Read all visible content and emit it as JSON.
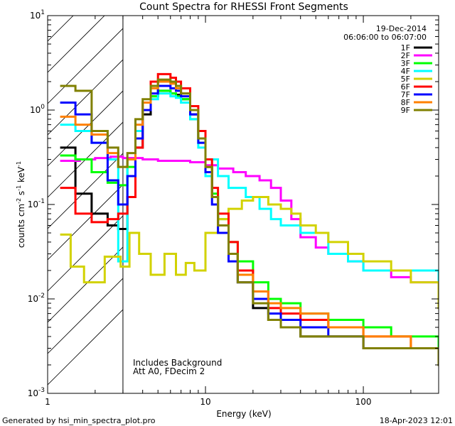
{
  "chart_data": {
    "type": "line",
    "title": "Count Spectra for RHESSI Front Segments",
    "xlabel": "Energy (keV)",
    "ylabel_parts": [
      "counts cm",
      "-2",
      " s",
      "-1",
      " keV",
      "-1"
    ],
    "x_scale": "log",
    "y_scale": "log",
    "xlim": [
      1,
      300
    ],
    "ylim": [
      0.001,
      10
    ],
    "x_ticks": [
      {
        "value": 1,
        "label": "1"
      },
      {
        "value": 10,
        "label": "10"
      },
      {
        "value": 100,
        "label": "100"
      }
    ],
    "y_ticks": [
      {
        "value": 10,
        "base": "10",
        "exp": "1"
      },
      {
        "value": 1,
        "base": "10",
        "exp": "0"
      },
      {
        "value": 0.1,
        "base": "10",
        "exp": "-1"
      },
      {
        "value": 0.01,
        "base": "10",
        "exp": "-2"
      },
      {
        "value": 0.001,
        "base": "10",
        "exp": "-3"
      }
    ],
    "date": "19-Dec-2014",
    "time_range": "06:06:00 to 06:07:00",
    "shaded_region_xlim": [
      1,
      3
    ],
    "annotations": [
      "Includes Background",
      "Att A0, FDecim 2"
    ],
    "series": [
      {
        "name": "1F",
        "color": "#000000",
        "points": [
          [
            1.2,
            0.4
          ],
          [
            1.5,
            0.13
          ],
          [
            1.9,
            0.08
          ],
          [
            2.4,
            0.06
          ],
          [
            2.8,
            0.055
          ],
          [
            3.2,
            0.12
          ],
          [
            3.6,
            0.4
          ],
          [
            4.0,
            0.9
          ],
          [
            4.5,
            1.4
          ],
          [
            5.0,
            1.6
          ],
          [
            5.5,
            1.6
          ],
          [
            6.0,
            1.5
          ],
          [
            6.5,
            1.45
          ],
          [
            7.0,
            1.3
          ],
          [
            8.0,
            0.9
          ],
          [
            9.0,
            0.5
          ],
          [
            10.0,
            0.25
          ],
          [
            11.0,
            0.12
          ],
          [
            12.0,
            0.06
          ],
          [
            14.0,
            0.03
          ],
          [
            16.0,
            0.015
          ],
          [
            20.0,
            0.008
          ],
          [
            25.0,
            0.006
          ],
          [
            30.0,
            0.005
          ],
          [
            40.0,
            0.004
          ],
          [
            60.0,
            0.004
          ],
          [
            100.0,
            0.003
          ],
          [
            150.0,
            0.003
          ],
          [
            200.0,
            0.003
          ],
          [
            300.0,
            0.003
          ]
        ]
      },
      {
        "name": "2F",
        "color": "#ff00ff",
        "points": [
          [
            1.2,
            0.29
          ],
          [
            1.6,
            0.3
          ],
          [
            2.0,
            0.31
          ],
          [
            2.5,
            0.32
          ],
          [
            3.0,
            0.31
          ],
          [
            4.0,
            0.3
          ],
          [
            5.0,
            0.29
          ],
          [
            6.0,
            0.29
          ],
          [
            8.0,
            0.28
          ],
          [
            10.0,
            0.26
          ],
          [
            12.0,
            0.24
          ],
          [
            15.0,
            0.22
          ],
          [
            18.0,
            0.2
          ],
          [
            22.0,
            0.18
          ],
          [
            26.0,
            0.15
          ],
          [
            30.0,
            0.11
          ],
          [
            35.0,
            0.07
          ],
          [
            40.0,
            0.045
          ],
          [
            50.0,
            0.035
          ],
          [
            60.0,
            0.03
          ],
          [
            80.0,
            0.025
          ],
          [
            100.0,
            0.02
          ],
          [
            150.0,
            0.017
          ],
          [
            200.0,
            0.015
          ],
          [
            300.0,
            0.012
          ]
        ]
      },
      {
        "name": "3F",
        "color": "#00ff00",
        "points": [
          [
            1.2,
            0.33
          ],
          [
            1.5,
            0.3
          ],
          [
            1.9,
            0.22
          ],
          [
            2.4,
            0.17
          ],
          [
            2.8,
            0.16
          ],
          [
            3.2,
            0.25
          ],
          [
            3.6,
            0.6
          ],
          [
            4.0,
            1.0
          ],
          [
            4.5,
            1.4
          ],
          [
            5.0,
            1.6
          ],
          [
            5.5,
            1.6
          ],
          [
            6.0,
            1.5
          ],
          [
            6.5,
            1.4
          ],
          [
            7.0,
            1.3
          ],
          [
            8.0,
            0.8
          ],
          [
            9.0,
            0.45
          ],
          [
            10.0,
            0.25
          ],
          [
            11.0,
            0.13
          ],
          [
            12.0,
            0.07
          ],
          [
            14.0,
            0.04
          ],
          [
            16.0,
            0.025
          ],
          [
            20.0,
            0.015
          ],
          [
            25.0,
            0.01
          ],
          [
            30.0,
            0.009
          ],
          [
            40.0,
            0.007
          ],
          [
            60.0,
            0.006
          ],
          [
            100.0,
            0.005
          ],
          [
            150.0,
            0.004
          ],
          [
            200.0,
            0.004
          ],
          [
            300.0,
            0.003
          ]
        ]
      },
      {
        "name": "4F",
        "color": "#00ffff",
        "points": [
          [
            1.2,
            0.7
          ],
          [
            1.5,
            0.6
          ],
          [
            1.9,
            0.45
          ],
          [
            2.4,
            0.3
          ],
          [
            2.8,
            0.025
          ],
          [
            3.2,
            0.3
          ],
          [
            3.6,
            0.6
          ],
          [
            4.0,
            1.0
          ],
          [
            4.5,
            1.3
          ],
          [
            5.0,
            1.5
          ],
          [
            5.5,
            1.5
          ],
          [
            6.0,
            1.4
          ],
          [
            6.5,
            1.35
          ],
          [
            7.0,
            1.2
          ],
          [
            8.0,
            0.8
          ],
          [
            9.0,
            0.4
          ],
          [
            10.0,
            0.2
          ],
          [
            11.0,
            0.3
          ],
          [
            12.0,
            0.2
          ],
          [
            14.0,
            0.15
          ],
          [
            18.0,
            0.12
          ],
          [
            22.0,
            0.09
          ],
          [
            26.0,
            0.07
          ],
          [
            30.0,
            0.06
          ],
          [
            40.0,
            0.05
          ],
          [
            50.0,
            0.05
          ],
          [
            60.0,
            0.03
          ],
          [
            80.0,
            0.025
          ],
          [
            100.0,
            0.02
          ],
          [
            150.0,
            0.02
          ],
          [
            200.0,
            0.02
          ],
          [
            300.0,
            0.015
          ]
        ]
      },
      {
        "name": "5F",
        "color": "#d2d200",
        "points": [
          [
            1.2,
            0.048
          ],
          [
            1.4,
            0.022
          ],
          [
            1.7,
            0.015
          ],
          [
            2.0,
            0.015
          ],
          [
            2.3,
            0.028
          ],
          [
            2.6,
            0.028
          ],
          [
            2.9,
            0.022
          ],
          [
            3.3,
            0.05
          ],
          [
            3.8,
            0.03
          ],
          [
            4.5,
            0.018
          ],
          [
            5.5,
            0.03
          ],
          [
            6.5,
            0.018
          ],
          [
            7.5,
            0.024
          ],
          [
            8.5,
            0.02
          ],
          [
            10.0,
            0.05
          ],
          [
            12.0,
            0.07
          ],
          [
            14.0,
            0.09
          ],
          [
            17.0,
            0.11
          ],
          [
            20.0,
            0.12
          ],
          [
            25.0,
            0.1
          ],
          [
            30.0,
            0.09
          ],
          [
            35.0,
            0.08
          ],
          [
            40.0,
            0.06
          ],
          [
            50.0,
            0.05
          ],
          [
            60.0,
            0.04
          ],
          [
            80.0,
            0.03
          ],
          [
            100.0,
            0.025
          ],
          [
            150.0,
            0.02
          ],
          [
            200.0,
            0.015
          ],
          [
            300.0,
            0.008
          ]
        ]
      },
      {
        "name": "6F",
        "color": "#ff0000",
        "points": [
          [
            1.2,
            0.15
          ],
          [
            1.5,
            0.08
          ],
          [
            1.9,
            0.065
          ],
          [
            2.4,
            0.07
          ],
          [
            2.8,
            0.08
          ],
          [
            3.2,
            0.12
          ],
          [
            3.6,
            0.4
          ],
          [
            4.0,
            1.2
          ],
          [
            4.5,
            2.0
          ],
          [
            5.0,
            2.4
          ],
          [
            5.5,
            2.4
          ],
          [
            6.0,
            2.2
          ],
          [
            6.5,
            2.0
          ],
          [
            7.0,
            1.7
          ],
          [
            8.0,
            1.1
          ],
          [
            9.0,
            0.6
          ],
          [
            10.0,
            0.3
          ],
          [
            11.0,
            0.15
          ],
          [
            12.0,
            0.08
          ],
          [
            14.0,
            0.04
          ],
          [
            16.0,
            0.02
          ],
          [
            20.0,
            0.012
          ],
          [
            25.0,
            0.008
          ],
          [
            30.0,
            0.007
          ],
          [
            40.0,
            0.006
          ],
          [
            60.0,
            0.005
          ],
          [
            100.0,
            0.004
          ],
          [
            150.0,
            0.004
          ],
          [
            200.0,
            0.003
          ],
          [
            300.0,
            0.003
          ]
        ]
      },
      {
        "name": "7F",
        "color": "#0000ff",
        "points": [
          [
            1.2,
            1.2
          ],
          [
            1.5,
            0.9
          ],
          [
            1.9,
            0.45
          ],
          [
            2.4,
            0.18
          ],
          [
            2.8,
            0.1
          ],
          [
            3.2,
            0.2
          ],
          [
            3.6,
            0.5
          ],
          [
            4.0,
            1.0
          ],
          [
            4.5,
            1.5
          ],
          [
            5.0,
            1.8
          ],
          [
            5.5,
            1.8
          ],
          [
            6.0,
            1.7
          ],
          [
            6.5,
            1.6
          ],
          [
            7.0,
            1.4
          ],
          [
            8.0,
            0.9
          ],
          [
            9.0,
            0.45
          ],
          [
            10.0,
            0.22
          ],
          [
            11.0,
            0.1
          ],
          [
            12.0,
            0.05
          ],
          [
            14.0,
            0.025
          ],
          [
            16.0,
            0.015
          ],
          [
            20.0,
            0.01
          ],
          [
            25.0,
            0.007
          ],
          [
            30.0,
            0.006
          ],
          [
            40.0,
            0.005
          ],
          [
            60.0,
            0.004
          ],
          [
            100.0,
            0.003
          ],
          [
            150.0,
            0.003
          ],
          [
            200.0,
            0.003
          ],
          [
            300.0,
            0.002
          ]
        ]
      },
      {
        "name": "8F",
        "color": "#ff8000",
        "points": [
          [
            1.2,
            0.85
          ],
          [
            1.5,
            0.7
          ],
          [
            1.9,
            0.55
          ],
          [
            2.4,
            0.35
          ],
          [
            2.8,
            0.25
          ],
          [
            3.2,
            0.3
          ],
          [
            3.6,
            0.7
          ],
          [
            4.0,
            1.2
          ],
          [
            4.5,
            1.7
          ],
          [
            5.0,
            2.0
          ],
          [
            5.5,
            2.0
          ],
          [
            6.0,
            1.9
          ],
          [
            6.5,
            1.7
          ],
          [
            7.0,
            1.5
          ],
          [
            8.0,
            1.0
          ],
          [
            9.0,
            0.5
          ],
          [
            10.0,
            0.25
          ],
          [
            11.0,
            0.12
          ],
          [
            12.0,
            0.06
          ],
          [
            14.0,
            0.03
          ],
          [
            16.0,
            0.018
          ],
          [
            20.0,
            0.012
          ],
          [
            25.0,
            0.009
          ],
          [
            30.0,
            0.008
          ],
          [
            40.0,
            0.007
          ],
          [
            60.0,
            0.005
          ],
          [
            100.0,
            0.004
          ],
          [
            150.0,
            0.004
          ],
          [
            200.0,
            0.003
          ],
          [
            300.0,
            0.003
          ]
        ]
      },
      {
        "name": "9F",
        "color": "#808000",
        "points": [
          [
            1.2,
            1.8
          ],
          [
            1.5,
            1.6
          ],
          [
            1.9,
            0.6
          ],
          [
            2.4,
            0.4
          ],
          [
            2.8,
            0.25
          ],
          [
            3.2,
            0.35
          ],
          [
            3.6,
            0.8
          ],
          [
            4.0,
            1.3
          ],
          [
            4.5,
            1.8
          ],
          [
            5.0,
            2.1
          ],
          [
            5.5,
            2.1
          ],
          [
            6.0,
            2.0
          ],
          [
            6.5,
            1.8
          ],
          [
            7.0,
            1.5
          ],
          [
            8.0,
            1.0
          ],
          [
            9.0,
            0.5
          ],
          [
            10.0,
            0.25
          ],
          [
            11.0,
            0.12
          ],
          [
            12.0,
            0.06
          ],
          [
            14.0,
            0.03
          ],
          [
            16.0,
            0.015
          ],
          [
            20.0,
            0.009
          ],
          [
            25.0,
            0.006
          ],
          [
            30.0,
            0.005
          ],
          [
            40.0,
            0.004
          ],
          [
            60.0,
            0.004
          ],
          [
            100.0,
            0.003
          ],
          [
            150.0,
            0.003
          ],
          [
            200.0,
            0.003
          ],
          [
            300.0,
            0.002
          ]
        ]
      }
    ]
  },
  "footer": {
    "left": "Generated by hsi_min_spectra_plot.pro",
    "right": "18-Apr-2023 12:01"
  }
}
